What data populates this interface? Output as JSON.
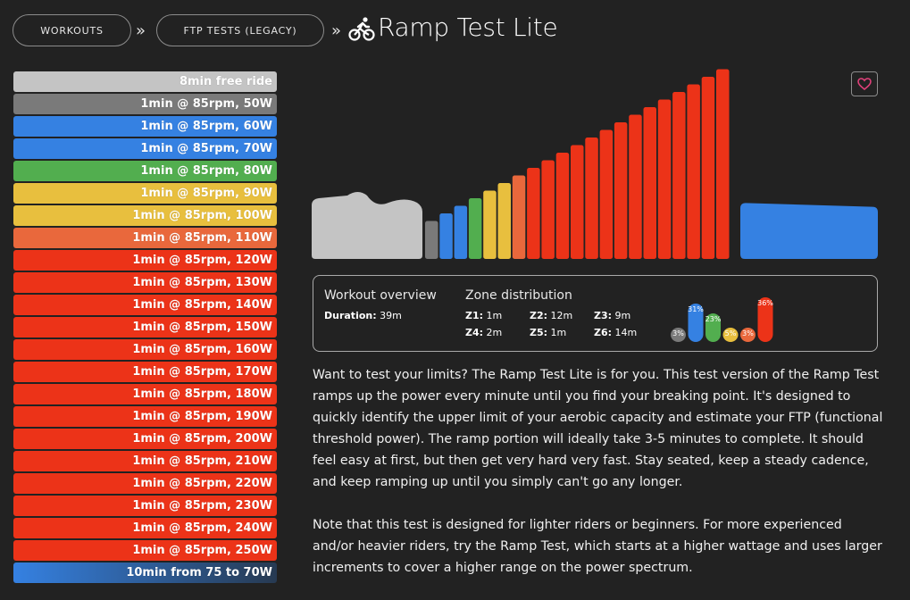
{
  "breadcrumb": {
    "items": [
      {
        "label": "WORKOUTS"
      },
      {
        "label": "FTP TESTS (LEGACY)"
      }
    ],
    "separator": "»"
  },
  "workout": {
    "title": "Ramp Test Lite",
    "icon": "cyclist-icon"
  },
  "colors": {
    "recovery": "#c4c4c4",
    "z1": "#7a7a7a",
    "z2": "#3581e2",
    "z3": "#52ae4f",
    "z4": "#e8bf3e",
    "z5": "#e9683c",
    "z6": "#ec3318"
  },
  "segments": [
    {
      "label": "8min free ride",
      "zone": "recovery"
    },
    {
      "label": "1min @ 85rpm, 50W",
      "zone": "z1"
    },
    {
      "label": "1min @ 85rpm, 60W",
      "zone": "z2"
    },
    {
      "label": "1min @ 85rpm, 70W",
      "zone": "z2"
    },
    {
      "label": "1min @ 85rpm, 80W",
      "zone": "z3"
    },
    {
      "label": "1min @ 85rpm, 90W",
      "zone": "z4"
    },
    {
      "label": "1min @ 85rpm, 100W",
      "zone": "z4"
    },
    {
      "label": "1min @ 85rpm, 110W",
      "zone": "z5"
    },
    {
      "label": "1min @ 85rpm, 120W",
      "zone": "z6"
    },
    {
      "label": "1min @ 85rpm, 130W",
      "zone": "z6"
    },
    {
      "label": "1min @ 85rpm, 140W",
      "zone": "z6"
    },
    {
      "label": "1min @ 85rpm, 150W",
      "zone": "z6"
    },
    {
      "label": "1min @ 85rpm, 160W",
      "zone": "z6"
    },
    {
      "label": "1min @ 85rpm, 170W",
      "zone": "z6"
    },
    {
      "label": "1min @ 85rpm, 180W",
      "zone": "z6"
    },
    {
      "label": "1min @ 85rpm, 190W",
      "zone": "z6"
    },
    {
      "label": "1min @ 85rpm, 200W",
      "zone": "z6"
    },
    {
      "label": "1min @ 85rpm, 210W",
      "zone": "z6"
    },
    {
      "label": "1min @ 85rpm, 220W",
      "zone": "z6"
    },
    {
      "label": "1min @ 85rpm, 230W",
      "zone": "z6"
    },
    {
      "label": "1min @ 85rpm, 240W",
      "zone": "z6"
    },
    {
      "label": "1min @ 85rpm, 250W",
      "zone": "z6"
    },
    {
      "label": "10min from 75 to 70W",
      "zone": "cooldown"
    }
  ],
  "profile_chart": {
    "warmup_minutes": 8,
    "cooldown_minutes": 10,
    "cooldown_watts": [
      75,
      70
    ],
    "ramp": [
      {
        "minutes": 1,
        "watts": 50,
        "zone": "z1"
      },
      {
        "minutes": 1,
        "watts": 60,
        "zone": "z2"
      },
      {
        "minutes": 1,
        "watts": 70,
        "zone": "z2"
      },
      {
        "minutes": 1,
        "watts": 80,
        "zone": "z3"
      },
      {
        "minutes": 1,
        "watts": 90,
        "zone": "z4"
      },
      {
        "minutes": 1,
        "watts": 100,
        "zone": "z4"
      },
      {
        "minutes": 1,
        "watts": 110,
        "zone": "z5"
      },
      {
        "minutes": 1,
        "watts": 120,
        "zone": "z6"
      },
      {
        "minutes": 1,
        "watts": 130,
        "zone": "z6"
      },
      {
        "minutes": 1,
        "watts": 140,
        "zone": "z6"
      },
      {
        "minutes": 1,
        "watts": 150,
        "zone": "z6"
      },
      {
        "minutes": 1,
        "watts": 160,
        "zone": "z6"
      },
      {
        "minutes": 1,
        "watts": 170,
        "zone": "z6"
      },
      {
        "minutes": 1,
        "watts": 180,
        "zone": "z6"
      },
      {
        "minutes": 1,
        "watts": 190,
        "zone": "z6"
      },
      {
        "minutes": 1,
        "watts": 200,
        "zone": "z6"
      },
      {
        "minutes": 1,
        "watts": 210,
        "zone": "z6"
      },
      {
        "minutes": 1,
        "watts": 220,
        "zone": "z6"
      },
      {
        "minutes": 1,
        "watts": 230,
        "zone": "z6"
      },
      {
        "minutes": 1,
        "watts": 240,
        "zone": "z6"
      },
      {
        "minutes": 1,
        "watts": 250,
        "zone": "z6"
      }
    ]
  },
  "favorite": {
    "icon": "heart-icon"
  },
  "overview": {
    "heading": "Workout overview",
    "duration_label": "Duration:",
    "duration_value": "39m",
    "zone_heading": "Zone distribution",
    "zones": [
      {
        "label": "Z1:",
        "value": "1m"
      },
      {
        "label": "Z2:",
        "value": "12m"
      },
      {
        "label": "Z3:",
        "value": "9m"
      },
      {
        "label": "Z4:",
        "value": "2m"
      },
      {
        "label": "Z5:",
        "value": "1m"
      },
      {
        "label": "Z6:",
        "value": "14m"
      }
    ]
  },
  "chart_data": {
    "type": "bar",
    "categories": [
      "Z1",
      "Z2",
      "Z3",
      "Z4",
      "Z5",
      "Z6"
    ],
    "values": [
      3,
      31,
      23,
      5,
      3,
      36
    ],
    "labels": [
      "3%",
      "31%",
      "23%",
      "5%",
      "3%",
      "36%"
    ],
    "colors": [
      "#7a7a7a",
      "#3581e2",
      "#52ae4f",
      "#e8bf3e",
      "#e9683c",
      "#ec3318"
    ],
    "ylim": [
      0,
      36
    ]
  },
  "description": {
    "paragraphs": [
      "Want to test your limits? The Ramp Test Lite is for you. This test version of the Ramp Test ramps up the power every minute until you find your breaking point. It's designed to quickly identify the upper limit of your aerobic capacity and estimate your FTP (functional threshold power). The ramp portion will ideally take 3-5 minutes to complete. It should feel easy at first, but then get very hard very fast. Stay seated, keep a steady cadence, and keep ramping up until you simply can't go any longer.",
      "Note that this test is designed for lighter riders or beginners. For more experienced and/or heavier riders, try the Ramp Test, which starts at a higher wattage and uses larger increments to cover a higher range on the power spectrum."
    ]
  }
}
